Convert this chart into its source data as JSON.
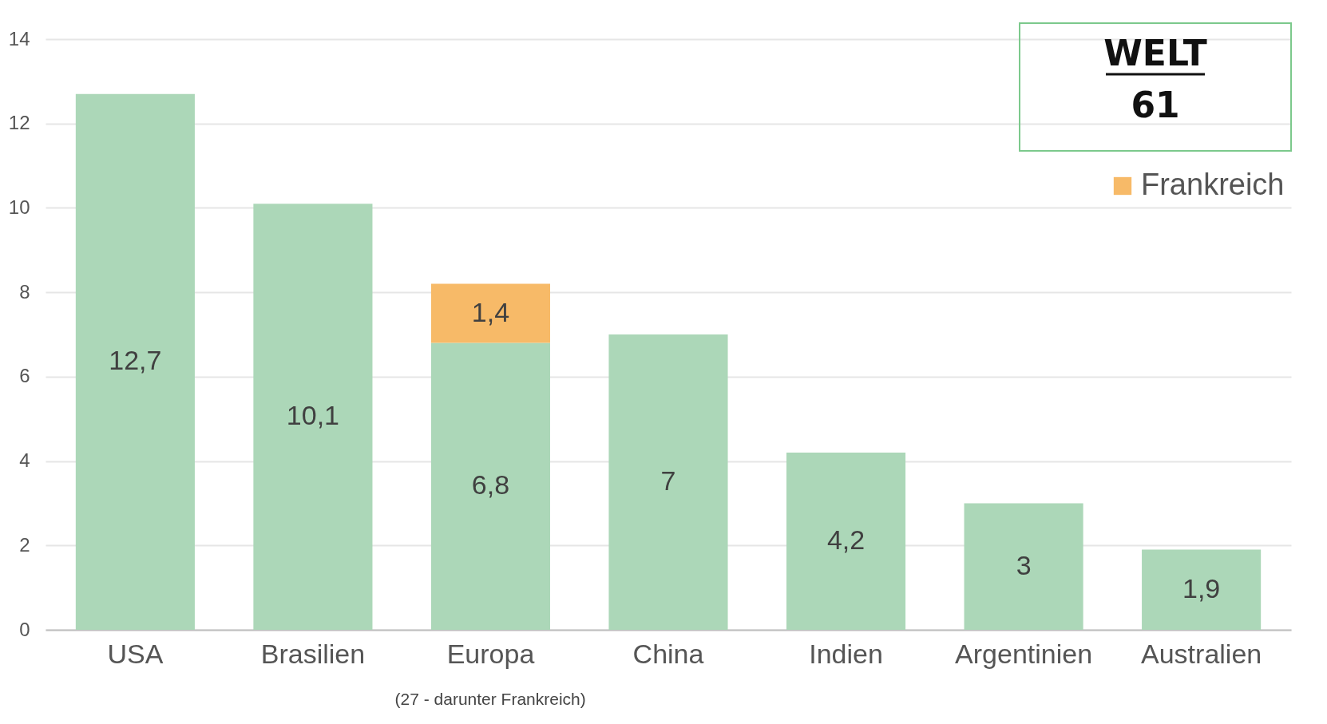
{
  "chart_data": {
    "type": "bar",
    "stacked": true,
    "categories": [
      "USA",
      "Brasilien",
      "Europa",
      "China",
      "Indien",
      "Argentinien",
      "Australien"
    ],
    "series": [
      {
        "color": "#acd7b8",
        "values": [
          12.7,
          10.1,
          6.8,
          7,
          4.2,
          3,
          1.9
        ],
        "value_labels": [
          "12,7",
          "10,1",
          "6,8",
          "7",
          "4,2",
          "3",
          "1,9"
        ]
      },
      {
        "name": "Frankreich",
        "color": "#f7ba68",
        "values": [
          null,
          null,
          1.4,
          null,
          null,
          null,
          null
        ],
        "value_labels": [
          null,
          null,
          "1,4",
          null,
          null,
          null,
          null
        ]
      }
    ],
    "ylim": [
      0,
      14
    ],
    "yticks": [
      0,
      2,
      4,
      6,
      8,
      10,
      12,
      14
    ],
    "grid": "y",
    "legend": "top right",
    "annotations": [
      "WELT",
      "61",
      "(27 - darunter Frankreich)"
    ]
  }
}
